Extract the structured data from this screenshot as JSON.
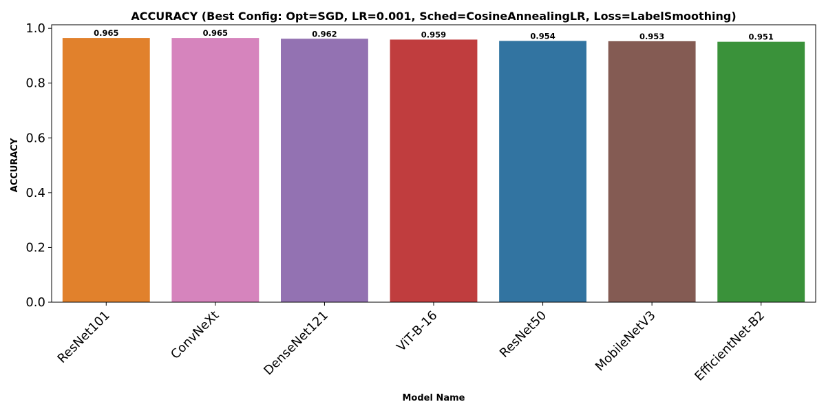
{
  "chart_data": {
    "type": "bar",
    "title": "ACCURACY (Best Config: Opt=SGD, LR=0.001, Sched=CosineAnnealingLR, Loss=LabelSmoothing)",
    "xlabel": "Model Name",
    "ylabel": "ACCURACY",
    "categories": [
      "ResNet101",
      "ConvNeXt",
      "DenseNet121",
      "ViT-B-16",
      "ResNet50",
      "MobileNetV3",
      "EfficientNet-B2"
    ],
    "values": [
      0.965,
      0.965,
      0.962,
      0.959,
      0.954,
      0.953,
      0.951
    ],
    "value_labels": [
      "0.965",
      "0.965",
      "0.962",
      "0.959",
      "0.954",
      "0.953",
      "0.951"
    ],
    "colors": [
      "#e1812c",
      "#d684bd",
      "#9372b2",
      "#c03d3e",
      "#3274a1",
      "#845b53",
      "#3a923a"
    ],
    "ylim": [
      0,
      1.013
    ],
    "yticks": [
      0.0,
      0.2,
      0.4,
      0.6,
      0.8,
      1.0
    ],
    "ytick_labels": [
      "0.0",
      "0.2",
      "0.4",
      "0.6",
      "0.8",
      "1.0"
    ],
    "grid": false,
    "legend": "none"
  }
}
